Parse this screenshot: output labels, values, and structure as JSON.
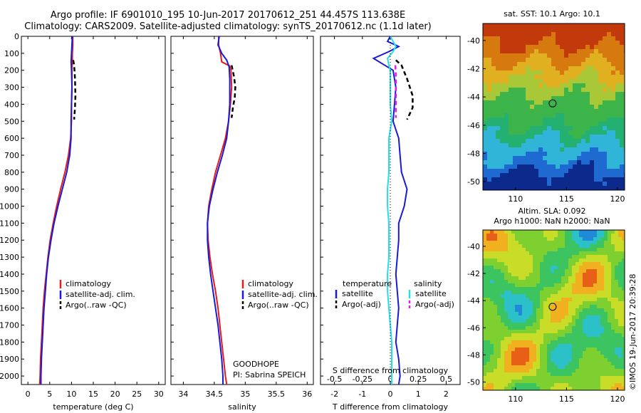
{
  "header": {
    "line1": "Argo profile: IF 6901010_195 10-Jun-2017 20170612_251 44.457S 113.638E",
    "line2": "Climatology: CARS2009. Satellite-adjusted climatology: synTS_20170612.nc (1.1d later)"
  },
  "maps": {
    "sst_title": "sat. SST: 10.1 Argo: 10.1",
    "sla_title_line1": "Altim. SLA: 0.092",
    "sla_title_line2": "Argo h1000: NaN h2000: NaN",
    "lat_ticks": [
      "-40",
      "-42",
      "-44",
      "-46",
      "-48",
      "-50"
    ],
    "lon_ticks": [
      "110",
      "115",
      "120"
    ],
    "argo_position": {
      "lon": 113.638,
      "lat": -44.457
    },
    "lon_range": [
      106.8,
      120.7
    ],
    "lat_range": [
      -50.6,
      -38.8
    ]
  },
  "credit": "©IMOS 19-Jun-2017 20:39:28",
  "legend_temp": {
    "items": [
      "climatology",
      "satellite-adj. clim.",
      "Argo(..raw -QC)"
    ]
  },
  "legend_sal": {
    "items": [
      "climatology",
      "satellite-adj. clim.",
      "Argo(..raw -QC)"
    ]
  },
  "legend_diff": {
    "head_t": "temperature",
    "head_s": "salinity",
    "items": [
      "satellite",
      "Argo(-adj)",
      "satellite",
      "Argo(-adj)"
    ]
  },
  "annotation": {
    "line1": "GOODHOPE",
    "line2": "PI: Sabrina SPEICH"
  },
  "colors": {
    "climatology": "#e41a1c",
    "satellite": "#1a1ad6",
    "argo": "#000000",
    "salinity_satellite": "#22e0e8",
    "salinity_argo": "#e020e0"
  },
  "chart_data": [
    {
      "type": "line",
      "xlabel": "temperature (deg C)",
      "ylabel": "",
      "xlim": [
        -1.5,
        31.5
      ],
      "ylim": [
        2050,
        0
      ],
      "xticks": [
        0,
        5,
        10,
        15,
        20,
        25,
        30
      ],
      "yticks": [
        0,
        100,
        200,
        300,
        400,
        500,
        600,
        700,
        800,
        900,
        1000,
        1100,
        1200,
        1300,
        1400,
        1500,
        1600,
        1700,
        1800,
        1900,
        2000
      ],
      "series": [
        {
          "name": "climatology",
          "style": "solid",
          "color": "#e41a1c",
          "points": [
            [
              10.3,
              0
            ],
            [
              10.3,
              50
            ],
            [
              10.2,
              100
            ],
            [
              10.2,
              150
            ],
            [
              10.1,
              200
            ],
            [
              10.1,
              300
            ],
            [
              10.0,
              400
            ],
            [
              10.0,
              500
            ],
            [
              9.8,
              600
            ],
            [
              9.3,
              700
            ],
            [
              8.5,
              800
            ],
            [
              7.5,
              900
            ],
            [
              6.6,
              1000
            ],
            [
              5.8,
              1100
            ],
            [
              5.1,
              1200
            ],
            [
              4.6,
              1300
            ],
            [
              4.2,
              1400
            ],
            [
              3.8,
              1500
            ],
            [
              3.5,
              1600
            ],
            [
              3.3,
              1700
            ],
            [
              3.1,
              1800
            ],
            [
              2.9,
              1900
            ],
            [
              2.8,
              2000
            ],
            [
              2.7,
              2050
            ]
          ]
        },
        {
          "name": "satellite-adj. clim.",
          "style": "solid",
          "color": "#1a1ad6",
          "points": [
            [
              10.2,
              0
            ],
            [
              10.1,
              50
            ],
            [
              10.0,
              100
            ],
            [
              9.9,
              150
            ],
            [
              10.0,
              200
            ],
            [
              10.1,
              300
            ],
            [
              10.0,
              400
            ],
            [
              9.9,
              500
            ],
            [
              9.9,
              600
            ],
            [
              9.6,
              700
            ],
            [
              8.9,
              800
            ],
            [
              7.9,
              900
            ],
            [
              6.9,
              1000
            ],
            [
              6.0,
              1100
            ],
            [
              5.3,
              1200
            ],
            [
              4.7,
              1300
            ],
            [
              4.3,
              1400
            ],
            [
              4.0,
              1500
            ],
            [
              3.7,
              1600
            ],
            [
              3.5,
              1700
            ],
            [
              3.3,
              1800
            ],
            [
              3.1,
              1900
            ],
            [
              3.0,
              2000
            ],
            [
              3.0,
              2050
            ]
          ]
        },
        {
          "name": "Argo(..raw -QC)",
          "style": "dash",
          "color": "#000000",
          "points": [
            [
              10.4,
              140
            ],
            [
              10.6,
              170
            ],
            [
              10.8,
              250
            ],
            [
              10.9,
              350
            ],
            [
              10.8,
              420
            ],
            [
              10.6,
              490
            ]
          ]
        }
      ]
    },
    {
      "type": "line",
      "xlabel": "salinity",
      "ylabel": "",
      "xlim": [
        33.8,
        36.1
      ],
      "ylim": [
        2050,
        0
      ],
      "xticks": [
        34,
        34.5,
        35,
        35.5,
        36
      ],
      "series": [
        {
          "name": "climatology",
          "style": "solid",
          "color": "#e41a1c",
          "points": [
            [
              34.57,
              0
            ],
            [
              34.57,
              50
            ],
            [
              34.6,
              100
            ],
            [
              34.62,
              150
            ],
            [
              34.75,
              175
            ],
            [
              34.77,
              200
            ],
            [
              34.78,
              300
            ],
            [
              34.76,
              400
            ],
            [
              34.73,
              500
            ],
            [
              34.68,
              600
            ],
            [
              34.6,
              700
            ],
            [
              34.52,
              800
            ],
            [
              34.46,
              900
            ],
            [
              34.41,
              1000
            ],
            [
              34.39,
              1100
            ],
            [
              34.4,
              1200
            ],
            [
              34.43,
              1300
            ],
            [
              34.47,
              1400
            ],
            [
              34.52,
              1500
            ],
            [
              34.56,
              1600
            ],
            [
              34.59,
              1700
            ],
            [
              34.62,
              1800
            ],
            [
              34.65,
              1900
            ],
            [
              34.68,
              2000
            ],
            [
              34.7,
              2050
            ]
          ]
        },
        {
          "name": "satellite-adj. clim.",
          "style": "solid",
          "color": "#1a1ad6",
          "points": [
            [
              34.58,
              0
            ],
            [
              34.56,
              50
            ],
            [
              34.62,
              100
            ],
            [
              34.7,
              140
            ],
            [
              34.74,
              180
            ],
            [
              34.75,
              250
            ],
            [
              34.75,
              400
            ],
            [
              34.73,
              500
            ],
            [
              34.7,
              600
            ],
            [
              34.63,
              700
            ],
            [
              34.55,
              800
            ],
            [
              34.48,
              900
            ],
            [
              34.42,
              1000
            ],
            [
              34.39,
              1100
            ],
            [
              34.39,
              1200
            ],
            [
              34.41,
              1300
            ],
            [
              34.44,
              1400
            ],
            [
              34.48,
              1500
            ],
            [
              34.52,
              1600
            ],
            [
              34.56,
              1700
            ],
            [
              34.59,
              1800
            ],
            [
              34.62,
              1900
            ],
            [
              34.64,
              2000
            ],
            [
              34.64,
              2050
            ]
          ]
        },
        {
          "name": "Argo(..raw -QC)",
          "style": "dash",
          "color": "#000000",
          "points": [
            [
              34.78,
              170
            ],
            [
              34.82,
              240
            ],
            [
              34.84,
              300
            ],
            [
              34.83,
              360
            ],
            [
              34.8,
              420
            ],
            [
              34.78,
              480
            ]
          ]
        }
      ]
    },
    {
      "type": "line",
      "xlabel": "T difference from climatology",
      "title_bottom": "S difference from climatology",
      "xlim": [
        -2.5,
        2.5
      ],
      "ylim": [
        2050,
        0
      ],
      "xticks": [
        -2,
        -1,
        0,
        1,
        2
      ],
      "sticks": [
        -0.5,
        -0.25,
        0,
        0.25,
        0.5
      ],
      "series": [
        {
          "name": "temperature satellite",
          "style": "solid",
          "color": "#1a1ad6",
          "points": [
            [
              0.0,
              0
            ],
            [
              -0.1,
              30
            ],
            [
              0.3,
              60
            ],
            [
              -0.05,
              90
            ],
            [
              -0.6,
              130
            ],
            [
              -0.3,
              160
            ],
            [
              0.1,
              200
            ],
            [
              0.2,
              300
            ],
            [
              0.15,
              400
            ],
            [
              0.1,
              500
            ],
            [
              0.2,
              550
            ],
            [
              0.3,
              600
            ],
            [
              0.35,
              700
            ],
            [
              0.4,
              800
            ],
            [
              0.6,
              900
            ],
            [
              0.5,
              1000
            ],
            [
              0.3,
              1100
            ],
            [
              0.3,
              1200
            ],
            [
              0.25,
              1300
            ],
            [
              0.2,
              1400
            ],
            [
              0.25,
              1500
            ],
            [
              0.3,
              1600
            ],
            [
              0.25,
              1700
            ],
            [
              0.2,
              1800
            ],
            [
              0.3,
              1900
            ],
            [
              0.35,
              2000
            ],
            [
              0.3,
              2050
            ]
          ]
        },
        {
          "name": "temperature Argo(-adj)",
          "style": "dash",
          "color": "#000000",
          "points": [
            [
              0.2,
              140
            ],
            [
              0.4,
              170
            ],
            [
              0.6,
              250
            ],
            [
              0.8,
              350
            ],
            [
              0.8,
              420
            ],
            [
              0.6,
              490
            ]
          ]
        },
        {
          "name": "salinity satellite",
          "style": "solid",
          "color": "#22e0e8",
          "points": [
            [
              0.0,
              0
            ],
            [
              0.1,
              30
            ],
            [
              0.2,
              60
            ],
            [
              0.1,
              90
            ],
            [
              -0.1,
              130
            ],
            [
              -0.05,
              170
            ],
            [
              0.0,
              200
            ],
            [
              0.0,
              400
            ],
            [
              0.05,
              500
            ],
            [
              -0.05,
              600
            ],
            [
              -0.05,
              700
            ],
            [
              -0.05,
              800
            ],
            [
              -0.1,
              900
            ],
            [
              -0.1,
              1000
            ],
            [
              -0.05,
              1100
            ],
            [
              -0.05,
              1200
            ],
            [
              -0.05,
              1300
            ],
            [
              -0.1,
              1400
            ],
            [
              -0.1,
              1500
            ],
            [
              -0.05,
              1600
            ],
            [
              0.0,
              1700
            ],
            [
              0.05,
              1800
            ],
            [
              0.05,
              1900
            ],
            [
              0.05,
              2000
            ],
            [
              0.05,
              2050
            ]
          ]
        },
        {
          "name": "salinity Argo(-adj)",
          "style": "dash",
          "color": "#e020e0",
          "points": [
            [
              0.18,
              170
            ],
            [
              0.2,
              240
            ],
            [
              0.2,
              300
            ],
            [
              0.2,
              360
            ],
            [
              0.2,
              420
            ],
            [
              0.2,
              480
            ]
          ]
        },
        {
          "name": "zero line",
          "style": "dot",
          "color": "#000000",
          "points": [
            [
              0.0,
              0
            ],
            [
              0.0,
              2050
            ]
          ]
        }
      ]
    }
  ]
}
